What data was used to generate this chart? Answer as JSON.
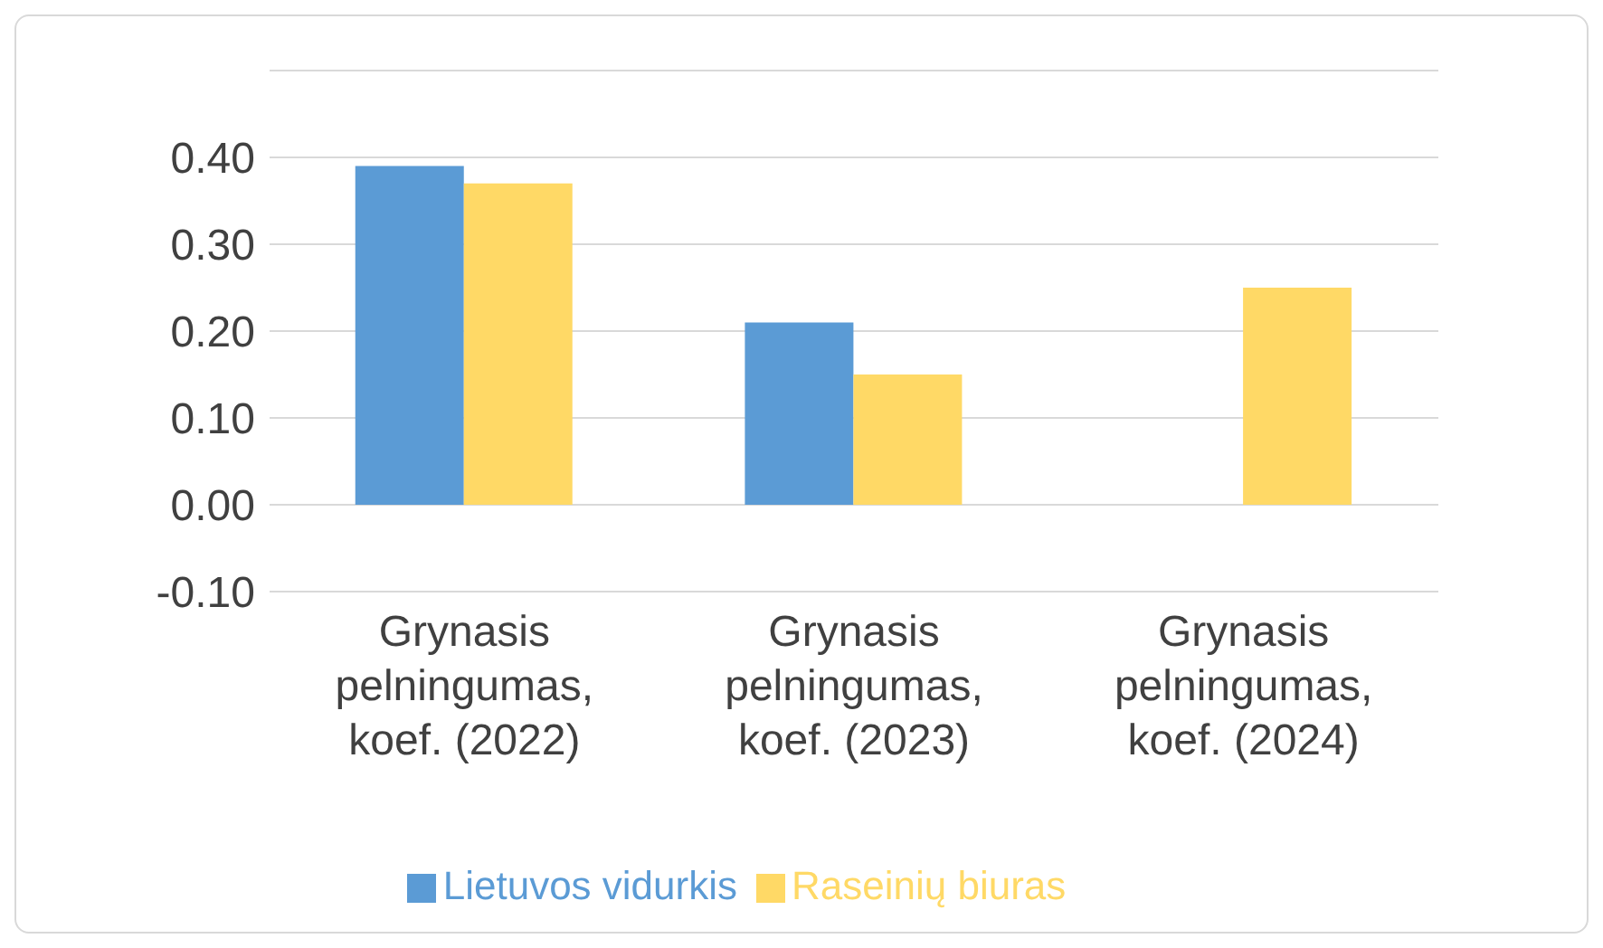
{
  "chart_data": {
    "type": "bar",
    "categories": [
      "Grynasis pelningumas, koef. (2022)",
      "Grynasis pelningumas, koef. (2023)",
      "Grynasis pelningumas, koef. (2024)"
    ],
    "series": [
      {
        "name": "Lietuvos vidurkis",
        "color": "#5b9bd5",
        "values": [
          0.39,
          0.21,
          0
        ]
      },
      {
        "name": "Raseinių biuras",
        "color": "#ffd966",
        "values": [
          0.37,
          0.15,
          0.25
        ]
      }
    ],
    "ylim": [
      -0.1,
      0.5
    ],
    "yticks": [
      {
        "value": -0.1,
        "label": "-0.10"
      },
      {
        "value": 0,
        "label": "0.00"
      },
      {
        "value": 0.1,
        "label": "0.10"
      },
      {
        "value": 0.2,
        "label": "0.20"
      },
      {
        "value": 0.3,
        "label": "0.30"
      },
      {
        "value": 0.4,
        "label": "0.40"
      },
      {
        "value": 0.5,
        "label": null
      }
    ],
    "grid": "y",
    "legend": "bottom"
  }
}
